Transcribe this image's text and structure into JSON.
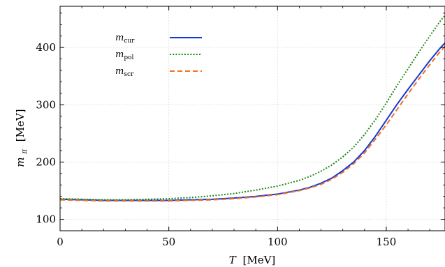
{
  "chart_data": {
    "type": "line",
    "title": "",
    "xlabel_var": "T",
    "xlabel_unit": "[MeV]",
    "ylabel_var": "m",
    "ylabel_sub": "π",
    "ylabel_unit": "[MeV]",
    "xlim": [
      0,
      177
    ],
    "ylim": [
      80,
      472
    ],
    "xticks": [
      0,
      50,
      100,
      150
    ],
    "xtick_labels": [
      "0",
      "50",
      "100",
      "150"
    ],
    "yticks": [
      100,
      200,
      300,
      400
    ],
    "ytick_labels": [
      "100",
      "200",
      "300",
      "400"
    ],
    "grid": true,
    "legend_position": "top-left",
    "series": [
      {
        "name": "m",
        "name_sub": "cur",
        "color": "#1538d4",
        "dash": "solid",
        "x": [
          0,
          10,
          20,
          30,
          40,
          50,
          60,
          70,
          80,
          90,
          100,
          110,
          115,
          120,
          125,
          130,
          135,
          140,
          145,
          150,
          155,
          160,
          165,
          170,
          175,
          177
        ],
        "y": [
          135,
          134,
          133,
          133,
          133,
          133,
          134,
          135,
          137,
          140,
          144,
          151,
          156,
          163,
          172,
          185,
          200,
          220,
          245,
          273,
          301,
          327,
          352,
          377,
          400,
          408
        ]
      },
      {
        "name": "m",
        "name_sub": "pol",
        "color": "#1b8a14",
        "dash": "dotted",
        "x": [
          0,
          10,
          20,
          30,
          40,
          50,
          60,
          70,
          80,
          90,
          100,
          110,
          115,
          120,
          125,
          130,
          135,
          140,
          145,
          150,
          155,
          160,
          165,
          170,
          175,
          177
        ],
        "y": [
          136,
          135,
          134,
          134,
          135,
          136,
          138,
          141,
          145,
          151,
          158,
          168,
          175,
          184,
          195,
          209,
          226,
          248,
          274,
          303,
          334,
          363,
          392,
          420,
          447,
          456
        ]
      },
      {
        "name": "m",
        "name_sub": "scr",
        "color": "#f07020",
        "dash": "dashed",
        "x": [
          0,
          10,
          20,
          30,
          40,
          50,
          60,
          70,
          80,
          90,
          100,
          110,
          115,
          120,
          125,
          130,
          135,
          140,
          145,
          150,
          155,
          160,
          165,
          170,
          175,
          177
        ],
        "y": [
          134,
          133,
          132,
          132,
          132,
          132,
          133,
          134,
          136,
          139,
          143,
          150,
          155,
          161,
          170,
          182,
          197,
          216,
          240,
          265,
          292,
          319,
          345,
          370,
          394,
          402
        ]
      }
    ]
  }
}
